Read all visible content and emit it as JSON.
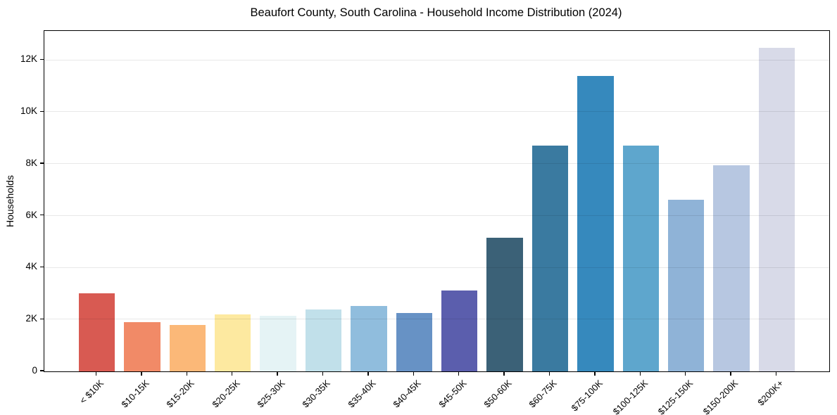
{
  "chart_data": {
    "type": "bar",
    "title": "Beaufort County, South Carolina - Household Income Distribution (2024)",
    "xlabel": "",
    "ylabel": "Households",
    "categories": [
      "< $10K",
      "$10-15K",
      "$15-20K",
      "$20-25K",
      "$25-30K",
      "$30-35K",
      "$35-40K",
      "$40-45K",
      "$45-50K",
      "$50-60K",
      "$60-75K",
      "$75-100K",
      "$100-125K",
      "$125-150K",
      "$150-200K",
      "$200K+"
    ],
    "values": [
      3020,
      1900,
      1790,
      2200,
      2130,
      2400,
      2520,
      2250,
      3130,
      5140,
      8700,
      11400,
      8700,
      6630,
      7950,
      12480
    ],
    "bar_colors": [
      "#d85a52",
      "#f18a67",
      "#fbb878",
      "#fde9a0",
      "#e5f3f5",
      "#c1e0ea",
      "#90bddd",
      "#6792c5",
      "#5b5ead",
      "#3b6177",
      "#3a7aa0",
      "#3689bd",
      "#5ea6cd",
      "#8fb3d7",
      "#b7c7e1",
      "#d8dae8"
    ],
    "ylim": [
      0,
      13125
    ],
    "yticks": [
      0,
      2000,
      4000,
      6000,
      8000,
      10000,
      12000
    ],
    "ytick_labels": [
      "0",
      "2K",
      "4K",
      "6K",
      "8K",
      "10K",
      "12K"
    ],
    "grid": "horizontal",
    "legend": "none",
    "background_color": "#ffffff",
    "axis_color": "#000000"
  }
}
